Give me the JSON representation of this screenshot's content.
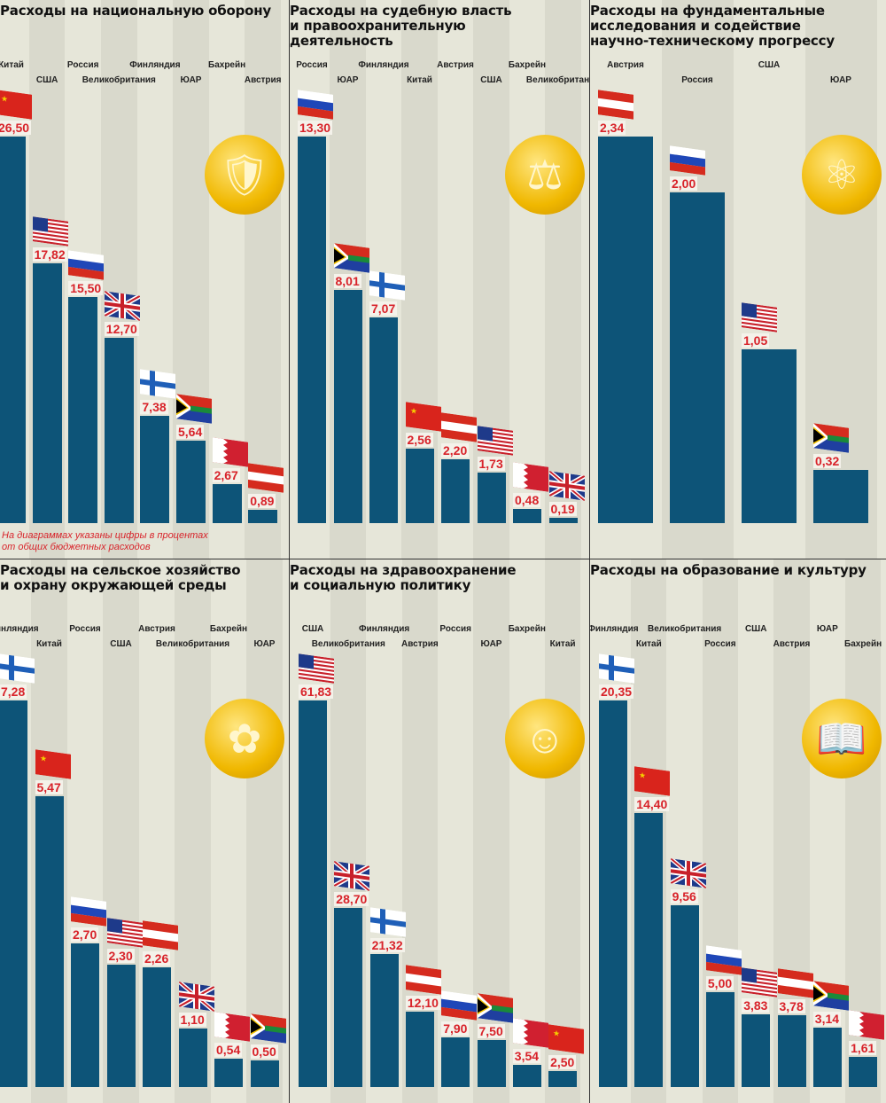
{
  "note": "На диаграммах указаны цифры в процентах\nот общих бюджетных расходов",
  "colors": {
    "bar": "#0d5478",
    "value": "#d8232a",
    "icon": "#f0b800"
  },
  "chart_data": [
    {
      "type": "bar",
      "title": "Расходы на национальную оборону",
      "icon": "tank-icon",
      "categories": [
        "Китай",
        "США",
        "Россия",
        "Великобритания",
        "Финляндия",
        "ЮАР",
        "Бахрейн",
        "Австрия"
      ],
      "values": [
        26.5,
        17.82,
        15.5,
        12.7,
        7.38,
        5.64,
        2.67,
        0.89
      ],
      "labels": [
        "26,50",
        "17,82",
        "15,50",
        "12,70",
        "7,38",
        "5,64",
        "2,67",
        "0,89"
      ]
    },
    {
      "type": "bar",
      "title": "Расходы на судебную власть\nи правоохранительную\nдеятельность",
      "icon": "scales-icon",
      "categories": [
        "Россия",
        "ЮАР",
        "Финляндия",
        "Китай",
        "Австрия",
        "США",
        "Бахрейн",
        "Великобритания"
      ],
      "values": [
        13.3,
        8.01,
        7.07,
        2.56,
        2.2,
        1.73,
        0.48,
        0.19
      ],
      "labels": [
        "13,30",
        "8,01",
        "7,07",
        "2,56",
        "2,20",
        "1,73",
        "0,48",
        "0,19"
      ]
    },
    {
      "type": "bar",
      "title": "Расходы на фундаментальные\nисследования и содействие\nнаучно-техническому прогрессу",
      "icon": "atom-icon",
      "categories": [
        "Австрия",
        "Россия",
        "США",
        "ЮАР"
      ],
      "values": [
        2.34,
        2.0,
        1.05,
        0.32
      ],
      "labels": [
        "2,34",
        "2,00",
        "1,05",
        "0,32"
      ]
    },
    {
      "type": "bar",
      "title": "Расходы на сельское хозяйство\nи охрану окружающей среды",
      "icon": "sunflower-icon",
      "categories": [
        "Финляндия",
        "Китай",
        "Россия",
        "США",
        "Австрия",
        "Великобритания",
        "Бахрейн",
        "ЮАР"
      ],
      "values": [
        7.28,
        5.47,
        2.7,
        2.3,
        2.26,
        1.1,
        0.54,
        0.5
      ],
      "labels": [
        "7,28",
        "5,47",
        "2,70",
        "2,30",
        "2,26",
        "1,10",
        "0,54",
        "0,50"
      ]
    },
    {
      "type": "bar",
      "title": "Расходы на здравоохранение\nи социальную политику",
      "icon": "human-figure-icon",
      "categories": [
        "США",
        "Великобритания",
        "Финляндия",
        "Австрия",
        "Россия",
        "ЮАР",
        "Бахрейн",
        "Китай"
      ],
      "values": [
        61.83,
        28.7,
        21.32,
        12.1,
        7.9,
        7.5,
        3.54,
        2.5
      ],
      "labels": [
        "61,83",
        "28,70",
        "21,32",
        "12,10",
        "7,90",
        "7,50",
        "3,54",
        "2,50"
      ]
    },
    {
      "type": "bar",
      "title": "Расходы на образование и культуру",
      "icon": "book-icon",
      "categories": [
        "Финляндия",
        "Китай",
        "Великобритания",
        "Россия",
        "США",
        "Австрия",
        "ЮАР",
        "Бахрейн"
      ],
      "values": [
        20.35,
        14.4,
        9.56,
        5.0,
        3.83,
        3.78,
        3.14,
        1.61
      ],
      "labels": [
        "20,35",
        "14,40",
        "9,56",
        "5,00",
        "3,83",
        "3,78",
        "3,14",
        "1,61"
      ]
    }
  ]
}
